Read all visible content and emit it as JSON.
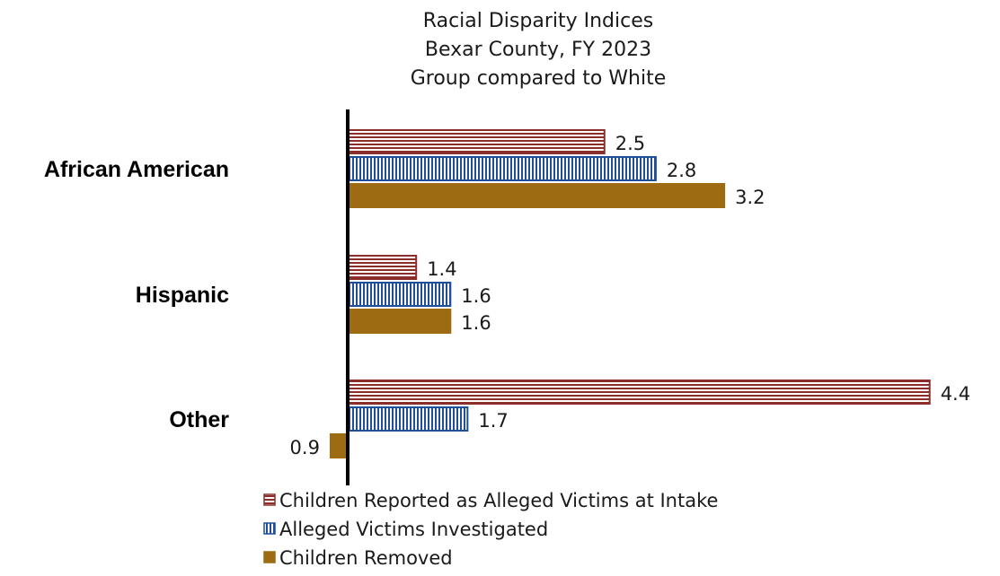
{
  "chart_data": {
    "type": "bar",
    "orientation": "horizontal",
    "title": [
      "Racial Disparity Indices",
      "Bexar County, FY 2023",
      "Group compared to White"
    ],
    "categories": [
      "African American",
      "Hispanic",
      "Other"
    ],
    "baseline": 1,
    "series": [
      {
        "name": "Children Reported as Alleged Victims at Intake",
        "values": [
          2.5,
          1.4,
          4.4
        ],
        "labels": [
          "2.5",
          "1.4",
          "4.4"
        ],
        "color": "#8b2e2b",
        "pattern": "horizontal-stripes"
      },
      {
        "name": "Alleged Victims Investigated",
        "values": [
          2.8,
          1.6,
          1.7
        ],
        "labels": [
          "2.8",
          "1.6",
          "1.7"
        ],
        "color": "#1f4e9a",
        "pattern": "vertical-stripes"
      },
      {
        "name": "Children Removed",
        "values": [
          3.2,
          1.6,
          0.9
        ],
        "labels": [
          "3.2",
          "1.6",
          "0.9"
        ],
        "color": "#9c6b12",
        "pattern": "solid"
      }
    ],
    "legend_position": "bottom-left",
    "grid": false,
    "xlim": [
      0.9,
      4.4
    ]
  }
}
